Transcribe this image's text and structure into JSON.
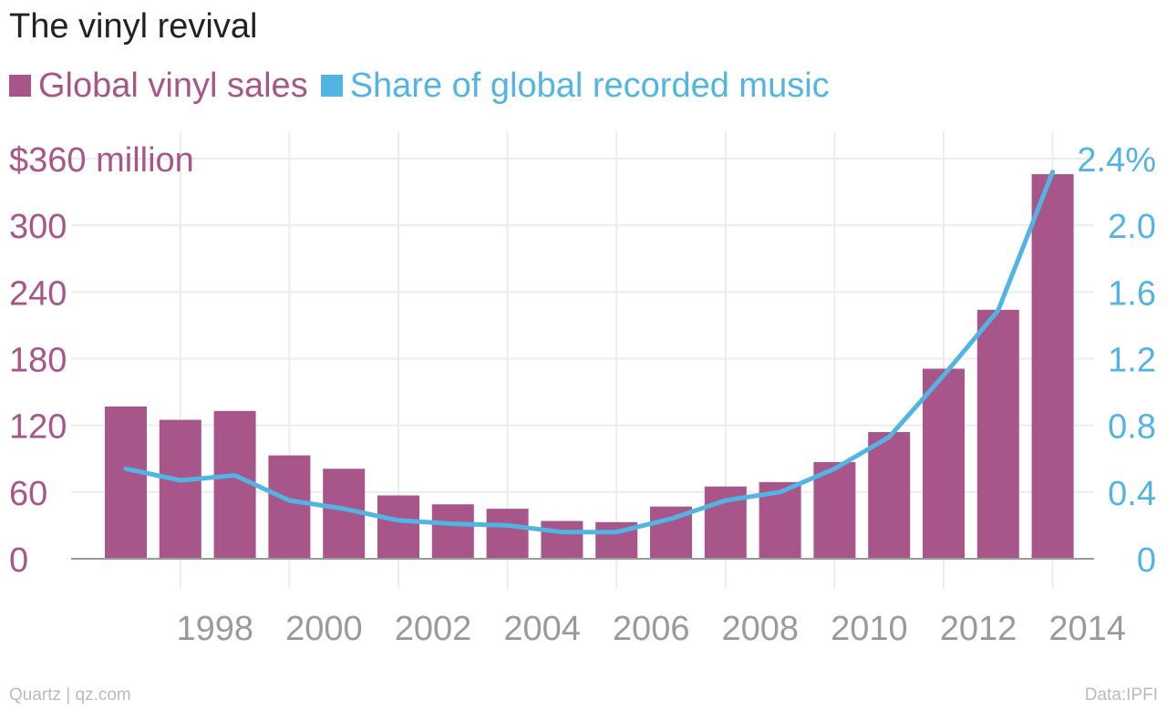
{
  "chart_data": {
    "type": "bar",
    "title": "The vinyl revival",
    "x": [
      1997,
      1998,
      1999,
      2000,
      2001,
      2002,
      2003,
      2004,
      2005,
      2006,
      2007,
      2008,
      2009,
      2010,
      2011,
      2012,
      2013,
      2014
    ],
    "x_tick_labels": [
      "1998",
      "2000",
      "2002",
      "2004",
      "2006",
      "2008",
      "2010",
      "2012",
      "2014"
    ],
    "x_tick_values": [
      1998,
      2000,
      2002,
      2004,
      2006,
      2008,
      2010,
      2012,
      2014
    ],
    "series": [
      {
        "name": "Global vinyl sales",
        "type": "bar",
        "axis": "left",
        "color": "#a8568a",
        "values": [
          137,
          125,
          133,
          93,
          81,
          57,
          49,
          45,
          34,
          33,
          47,
          65,
          69,
          87,
          114,
          171,
          224,
          346
        ]
      },
      {
        "name": "Share of global recorded music",
        "type": "line",
        "axis": "right",
        "color": "#52b4e2",
        "values": [
          0.54,
          0.47,
          0.5,
          0.35,
          0.3,
          0.23,
          0.21,
          0.2,
          0.16,
          0.16,
          0.24,
          0.35,
          0.4,
          0.54,
          0.73,
          1.1,
          1.49,
          2.32
        ]
      }
    ],
    "y_left": {
      "ylim": [
        0,
        360
      ],
      "ticks": [
        0,
        60,
        120,
        180,
        240,
        300,
        360
      ],
      "tick_labels": [
        "0",
        "60",
        "120",
        "180",
        "240",
        "300",
        "$360 million"
      ],
      "color": "#a8568a"
    },
    "y_right": {
      "ylim": [
        0,
        2.4
      ],
      "ticks": [
        0,
        0.4,
        0.8,
        1.2,
        1.6,
        2.0,
        2.4
      ],
      "tick_labels": [
        "0",
        "0.4",
        "0.8",
        "1.2",
        "1.6",
        "2.0",
        "2.4%"
      ],
      "color": "#52b4e2"
    },
    "grid": true,
    "legend": "top-left",
    "source_left": "Quartz | qz.com",
    "source_right": "Data:IPFI"
  }
}
